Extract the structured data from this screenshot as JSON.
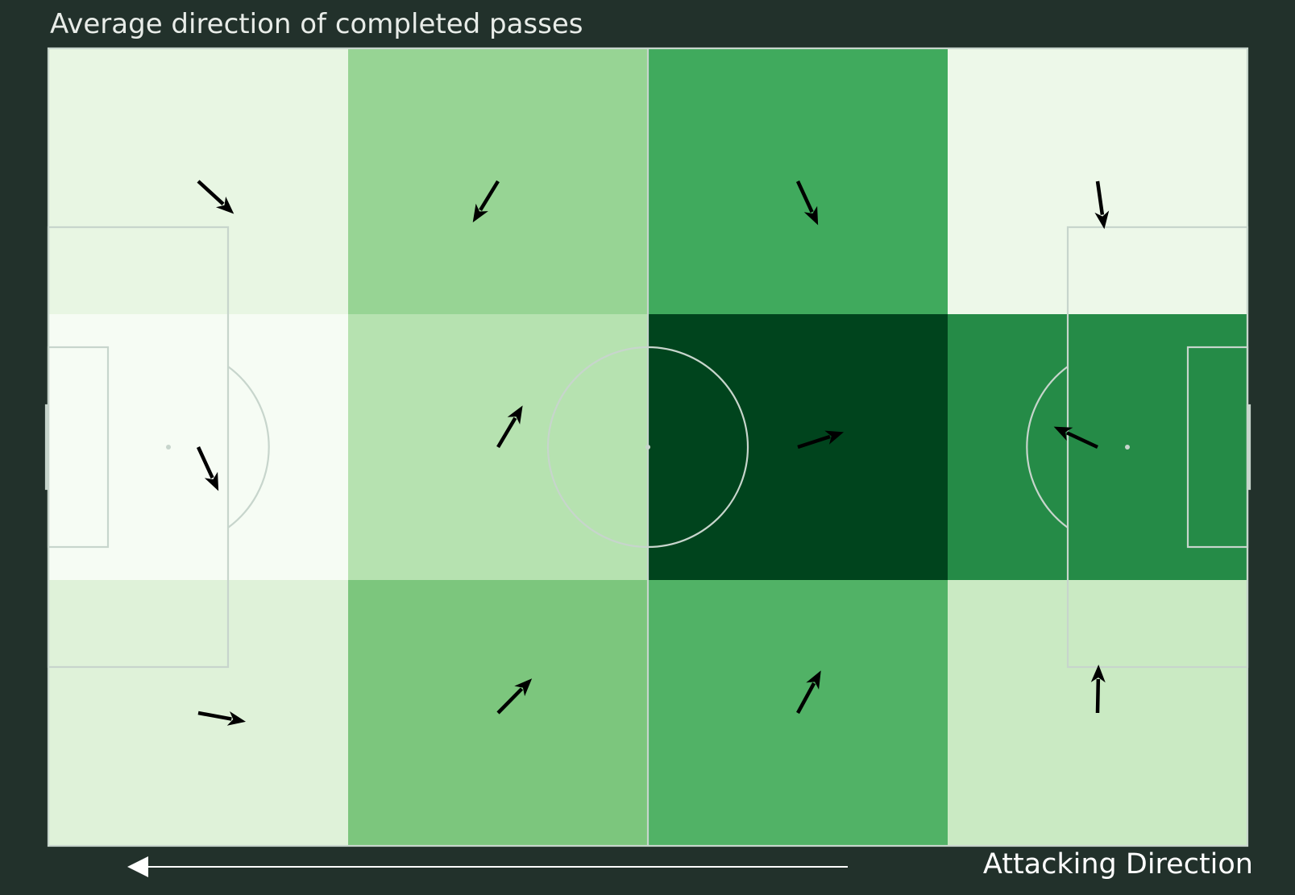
{
  "chart_data": {
    "type": "heatmap",
    "title": "Average direction of completed passes",
    "direction_label": "Attacking Direction",
    "grid": {
      "rows": 3,
      "cols": 4
    },
    "colors": {
      "background": "#22312b",
      "pitch_lines": "#c7d5cc",
      "arrows": "#000000",
      "direction_arrow": "#ffffff"
    },
    "cells": [
      {
        "row": 0,
        "col": 0,
        "fill": "#e8f6e3",
        "dx": 0.7,
        "dy": 0.64
      },
      {
        "row": 0,
        "col": 1,
        "fill": "#97d494",
        "dx": -0.52,
        "dy": 0.85
      },
      {
        "row": 0,
        "col": 2,
        "fill": "#40aa5d",
        "dx": 0.42,
        "dy": 0.91
      },
      {
        "row": 0,
        "col": 3,
        "fill": "#edf8e9",
        "dx": 0.14,
        "dy": 0.99
      },
      {
        "row": 1,
        "col": 0,
        "fill": "#f6fcf4",
        "dx": 0.42,
        "dy": 0.91
      },
      {
        "row": 1,
        "col": 1,
        "fill": "#b6e2b0",
        "dx": 0.51,
        "dy": -0.86
      },
      {
        "row": 1,
        "col": 2,
        "fill": "#00441d",
        "dx": 0.95,
        "dy": -0.31
      },
      {
        "row": 1,
        "col": 3,
        "fill": "#258b47",
        "dx": -0.9,
        "dy": -0.42
      },
      {
        "row": 2,
        "col": 0,
        "fill": "#dff2d9",
        "dx": 0.98,
        "dy": 0.18
      },
      {
        "row": 2,
        "col": 1,
        "fill": "#7cc67d",
        "dx": 0.7,
        "dy": -0.71
      },
      {
        "row": 2,
        "col": 2,
        "fill": "#51b266",
        "dx": 0.48,
        "dy": -0.88
      },
      {
        "row": 2,
        "col": 3,
        "fill": "#caeac3",
        "dx": 0.02,
        "dy": -1.0
      }
    ]
  }
}
